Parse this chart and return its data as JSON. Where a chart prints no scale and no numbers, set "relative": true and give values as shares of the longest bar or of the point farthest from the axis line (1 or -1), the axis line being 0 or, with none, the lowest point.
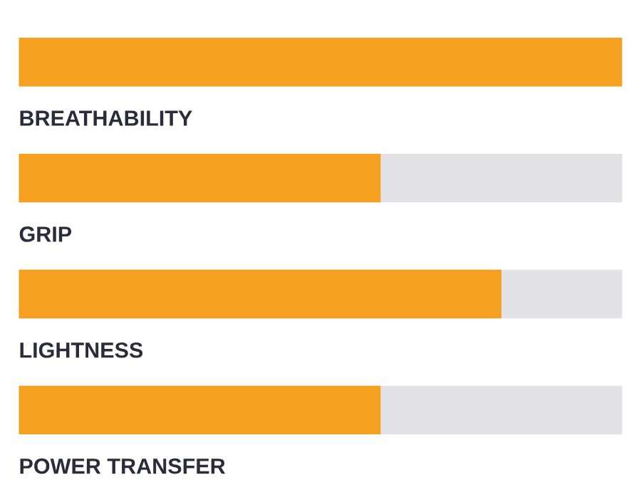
{
  "chart_data": {
    "type": "bar",
    "orientation": "horizontal",
    "stacked": true,
    "relative": true,
    "categories": [
      "BREATHABILITY",
      "GRIP",
      "LIGHTNESS",
      "POWER TRANSFER"
    ],
    "series": [
      {
        "color": "#f5a020",
        "values": [
          1,
          0.6,
          0.8,
          0.6
        ]
      },
      {
        "color": "#e2e1e6",
        "values": [
          0,
          0.4,
          0.2,
          0.4
        ]
      }
    ]
  }
}
